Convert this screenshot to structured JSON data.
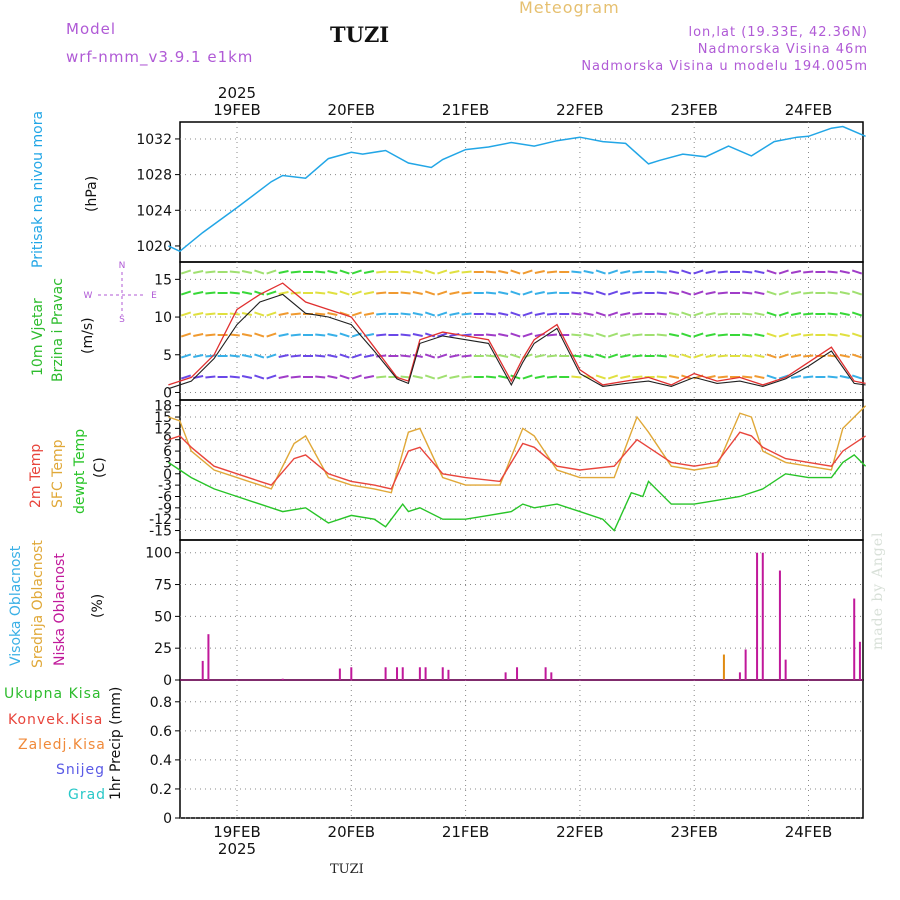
{
  "header": {
    "model_label": "Model",
    "model_name": "wrf-nmm_v3.9.1  e1km",
    "station": "TUZI",
    "product": "Meteogram",
    "coords": "lon,lat (19.33E, 42.36N)",
    "elevation": "Nadmorska Visina 46m",
    "model_elevation": "Nadmorska Visina u modelu 194.005m"
  },
  "footer_station": "TUZI",
  "credit": "made by Angel",
  "time_axis": {
    "year": "2025",
    "days": [
      "19FEB",
      "20FEB",
      "21FEB",
      "22FEB",
      "23FEB",
      "24FEB"
    ]
  },
  "panel_labels": {
    "pressure": {
      "name": "Pritisak na nivou mora",
      "unit": "(hPa)"
    },
    "wind": {
      "line1": "10m Vjetar",
      "line2": "Brzina i Pravac",
      "unit": "(m/s)",
      "compass": [
        "N",
        "S",
        "W",
        "E"
      ]
    },
    "temp": {
      "t2m": "2m Temp",
      "sfc": "SFC Temp",
      "dew": "dewpt Temp",
      "unit": "(C)"
    },
    "cloud": {
      "high": "Visoka Oblacnost",
      "mid": "Srednja Oblacnost",
      "low": "Niska Oblacnost",
      "unit": "(%)"
    },
    "precip": {
      "unit": "1hr Precip (mm)",
      "legend": [
        "Ukupna Kisa",
        "Konvek.Kisa",
        "Zaledj.Kisa",
        "Snijeg",
        "Grad"
      ]
    }
  },
  "colors": {
    "pressure": "#22a6e6",
    "t2m": "#e8453c",
    "sfc": "#e0a838",
    "dew": "#28c428",
    "wind_obs": "#e03030",
    "wind_model": "#202020",
    "cloud_low": "#c0189a",
    "cloud_mid": "#e08a10",
    "cloud_high": "#3ab0e6",
    "legend": [
      "#2ebc2e",
      "#e8453c",
      "#f08a3a",
      "#5a5ae6",
      "#28c8c8"
    ]
  },
  "chart_data": [
    {
      "type": "line",
      "title": "Pritisak na nivou mora",
      "ylabel": "(hPa)",
      "ylim": [
        1018.2,
        1033.9
      ],
      "yticks": [
        1020,
        1024,
        1028,
        1032
      ],
      "x_days": [
        -0.6,
        -0.5,
        -0.3,
        0,
        0.3,
        0.4,
        0.6,
        0.8,
        1.0,
        1.1,
        1.3,
        1.5,
        1.7,
        1.8,
        2.0,
        2.2,
        2.4,
        2.6,
        2.8,
        3.0,
        3.2,
        3.4,
        3.6,
        3.7,
        3.9,
        4.1,
        4.3,
        4.5,
        4.7,
        4.9,
        5.0,
        5.2,
        5.3,
        5.5
      ],
      "values": [
        1020,
        1019.4,
        1021.5,
        1024.3,
        1027.2,
        1027.9,
        1027.6,
        1029.8,
        1030.5,
        1030.3,
        1030.7,
        1029.3,
        1028.8,
        1029.7,
        1030.8,
        1031.1,
        1031.6,
        1031.2,
        1031.8,
        1032.2,
        1031.7,
        1031.5,
        1029.2,
        1029.6,
        1030.3,
        1030.0,
        1031.2,
        1030.1,
        1031.7,
        1032.2,
        1032.3,
        1033.2,
        1033.4,
        1032.3
      ],
      "grid": true
    },
    {
      "type": "line",
      "title": "10m Vjetar Brzina i Pravac",
      "ylabel": "(m/s)",
      "ylim": [
        -1,
        17.3
      ],
      "yticks": [
        0,
        5,
        10,
        15
      ],
      "series": [
        {
          "x_days": [
            -0.6,
            -0.4,
            -0.2,
            0,
            0.2,
            0.4,
            0.6,
            0.8,
            1.0,
            1.2,
            1.4,
            1.5,
            1.6,
            1.8,
            2.0,
            2.2,
            2.4,
            2.5,
            2.6,
            2.8,
            3.0,
            3.2,
            3.4,
            3.6,
            3.8,
            4.0,
            4.2,
            4.4,
            4.6,
            4.8,
            5.0,
            5.2,
            5.4,
            5.5
          ],
          "values": [
            1,
            2,
            5,
            11,
            13,
            14.5,
            12,
            11,
            10,
            6,
            2,
            1.5,
            7,
            8,
            7.5,
            7,
            1.5,
            4.5,
            7,
            9,
            3,
            1,
            1.5,
            2,
            1,
            2.5,
            1.5,
            2,
            1,
            2,
            4,
            6,
            1.5,
            1.2
          ]
        },
        {
          "x_days": [
            -0.6,
            -0.4,
            -0.2,
            0,
            0.2,
            0.4,
            0.6,
            0.8,
            1.0,
            1.2,
            1.4,
            1.5,
            1.6,
            1.8,
            2.0,
            2.2,
            2.4,
            2.5,
            2.6,
            2.8,
            3.0,
            3.2,
            3.4,
            3.6,
            3.8,
            4.0,
            4.2,
            4.4,
            4.6,
            4.8,
            5.0,
            5.2,
            5.4,
            5.5
          ],
          "values": [
            0.5,
            1.5,
            4.5,
            9,
            12,
            13,
            10.5,
            10,
            9,
            5.5,
            1.8,
            1.2,
            6.5,
            7.5,
            7,
            6.5,
            1,
            4,
            6.5,
            8.5,
            2.5,
            0.8,
            1.2,
            1.5,
            0.8,
            2,
            1.2,
            1.5,
            0.8,
            1.8,
            3.5,
            5.5,
            1.2,
            1
          ]
        }
      ],
      "grid": true
    },
    {
      "type": "line",
      "ylabel": "(C)",
      "ylim": [
        -17.5,
        19.5
      ],
      "yticks": [
        18,
        15,
        12,
        9,
        6,
        3,
        0,
        -3,
        -6,
        -9,
        -12,
        -15
      ],
      "series": [
        {
          "name": "2m Temp",
          "x_days": [
            -0.6,
            -0.5,
            -0.4,
            -0.2,
            0,
            0.2,
            0.3,
            0.5,
            0.6,
            0.8,
            1.0,
            1.2,
            1.35,
            1.5,
            1.6,
            1.8,
            2.0,
            2.3,
            2.5,
            2.6,
            2.8,
            3.0,
            3.3,
            3.5,
            3.6,
            3.8,
            4.0,
            4.2,
            4.4,
            4.5,
            4.6,
            4.8,
            5.0,
            5.2,
            5.3,
            5.5
          ],
          "values": [
            9,
            10,
            7,
            2,
            0,
            -2,
            -3,
            4,
            5,
            0,
            -2,
            -3,
            -4,
            6,
            7,
            0,
            -1,
            -2,
            8,
            7,
            2,
            1,
            2,
            9,
            7,
            3,
            2,
            3,
            11,
            10,
            7,
            4,
            3,
            2,
            6,
            10
          ]
        },
        {
          "name": "SFC Temp",
          "x_days": [
            -0.6,
            -0.5,
            -0.4,
            -0.2,
            0,
            0.2,
            0.3,
            0.5,
            0.6,
            0.8,
            1.0,
            1.2,
            1.35,
            1.5,
            1.6,
            1.8,
            2.0,
            2.3,
            2.5,
            2.6,
            2.8,
            3.0,
            3.3,
            3.5,
            3.6,
            3.8,
            4.0,
            4.2,
            4.4,
            4.5,
            4.6,
            4.8,
            5.0,
            5.2,
            5.3,
            5.5
          ],
          "values": [
            15,
            14,
            6,
            1,
            -1,
            -3,
            -4,
            8,
            10,
            -1,
            -3,
            -4,
            -5,
            11,
            12,
            -1,
            -3,
            -3,
            12,
            10,
            1,
            -1,
            -1,
            15,
            11,
            2,
            1,
            2,
            16,
            15,
            6,
            3,
            2,
            1,
            12,
            18
          ]
        },
        {
          "name": "dewpt Temp",
          "x_days": [
            -0.6,
            -0.5,
            -0.4,
            -0.2,
            0,
            0.2,
            0.4,
            0.6,
            0.8,
            1.0,
            1.2,
            1.3,
            1.45,
            1.5,
            1.6,
            1.8,
            2.0,
            2.2,
            2.4,
            2.5,
            2.6,
            2.8,
            3.0,
            3.2,
            3.3,
            3.45,
            3.55,
            3.6,
            3.8,
            4.0,
            4.2,
            4.4,
            4.6,
            4.8,
            5.0,
            5.2,
            5.3,
            5.4,
            5.5
          ],
          "values": [
            3,
            1,
            -1,
            -4,
            -6,
            -8,
            -10,
            -9,
            -13,
            -11,
            -12,
            -14,
            -8,
            -10,
            -9,
            -12,
            -12,
            -11,
            -10,
            -8,
            -9,
            -8,
            -10,
            -12,
            -15,
            -5,
            -6,
            -2,
            -8,
            -8,
            -7,
            -6,
            -4,
            0,
            -1,
            -1,
            3,
            5,
            2
          ]
        }
      ],
      "grid": true
    },
    {
      "type": "bar",
      "ylabel": "(%)",
      "ylim": [
        0,
        110
      ],
      "yticks": [
        0,
        25,
        50,
        75,
        100
      ],
      "series": [
        {
          "name": "Niska Oblacnost",
          "x_days": [
            -0.3,
            -0.25,
            0.4,
            0.9,
            1.0,
            1.3,
            1.4,
            1.45,
            1.6,
            1.65,
            1.8,
            1.85,
            2.35,
            2.45,
            2.7,
            2.75,
            4.4,
            4.45,
            4.55,
            4.6,
            4.75,
            4.8,
            5.4,
            5.45
          ],
          "values": [
            15,
            36,
            1,
            9,
            10,
            10,
            10,
            10,
            10,
            10,
            10,
            8,
            6,
            10,
            10,
            6,
            6,
            24,
            100,
            100,
            86,
            16,
            64,
            30
          ]
        },
        {
          "name": "Srednja Oblacnost",
          "x_days": [
            4.26
          ],
          "values": [
            20
          ]
        },
        {
          "name": "Visoka Oblacnost",
          "x_days": [],
          "values": []
        }
      ],
      "grid": true
    },
    {
      "type": "bar",
      "ylabel": "1hr Precip (mm)",
      "ylim": [
        0,
        0.95
      ],
      "yticks": [
        0,
        0.2,
        0.4,
        0.6,
        0.8
      ],
      "series": [
        {
          "name": "Ukupna Kisa",
          "x_days": [],
          "values": []
        },
        {
          "name": "Konvek.Kisa",
          "x_days": [],
          "values": []
        },
        {
          "name": "Zaledj.Kisa",
          "x_days": [],
          "values": []
        },
        {
          "name": "Snijeg",
          "x_days": [],
          "values": []
        },
        {
          "name": "Grad",
          "x_days": [],
          "values": []
        }
      ],
      "grid": true
    }
  ]
}
